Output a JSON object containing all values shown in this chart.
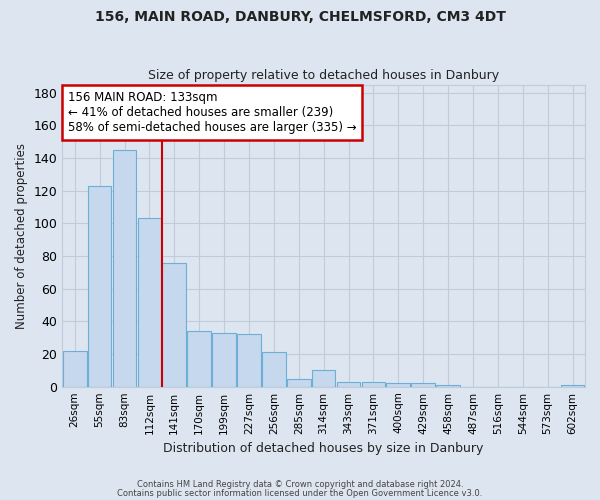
{
  "title1": "156, MAIN ROAD, DANBURY, CHELMSFORD, CM3 4DT",
  "title2": "Size of property relative to detached houses in Danbury",
  "xlabel": "Distribution of detached houses by size in Danbury",
  "ylabel": "Number of detached properties",
  "bar_color": "#c5d8ed",
  "bar_edge_color": "#6baed6",
  "categories": [
    "26sqm",
    "55sqm",
    "83sqm",
    "112sqm",
    "141sqm",
    "170sqm",
    "199sqm",
    "227sqm",
    "256sqm",
    "285sqm",
    "314sqm",
    "343sqm",
    "371sqm",
    "400sqm",
    "429sqm",
    "458sqm",
    "487sqm",
    "516sqm",
    "544sqm",
    "573sqm",
    "602sqm"
  ],
  "values": [
    22,
    123,
    145,
    103,
    76,
    34,
    33,
    32,
    21,
    5,
    10,
    3,
    3,
    2,
    2,
    1,
    0,
    0,
    0,
    0,
    1
  ],
  "ylim": [
    0,
    185
  ],
  "yticks": [
    0,
    20,
    40,
    60,
    80,
    100,
    120,
    140,
    160,
    180
  ],
  "vline_x": 3.5,
  "annotation_text": "156 MAIN ROAD: 133sqm\n← 41% of detached houses are smaller (239)\n58% of semi-detached houses are larger (335) →",
  "annotation_box_color": "#ffffff",
  "annotation_box_edge": "#cc0000",
  "vline_color": "#cc0000",
  "footer1": "Contains HM Land Registry data © Crown copyright and database right 2024.",
  "footer2": "Contains public sector information licensed under the Open Government Licence v3.0.",
  "background_color": "#dde6f0",
  "plot_bg_color": "#dde6f0",
  "grid_color": "#c0ccd8",
  "text_color": "#222222"
}
